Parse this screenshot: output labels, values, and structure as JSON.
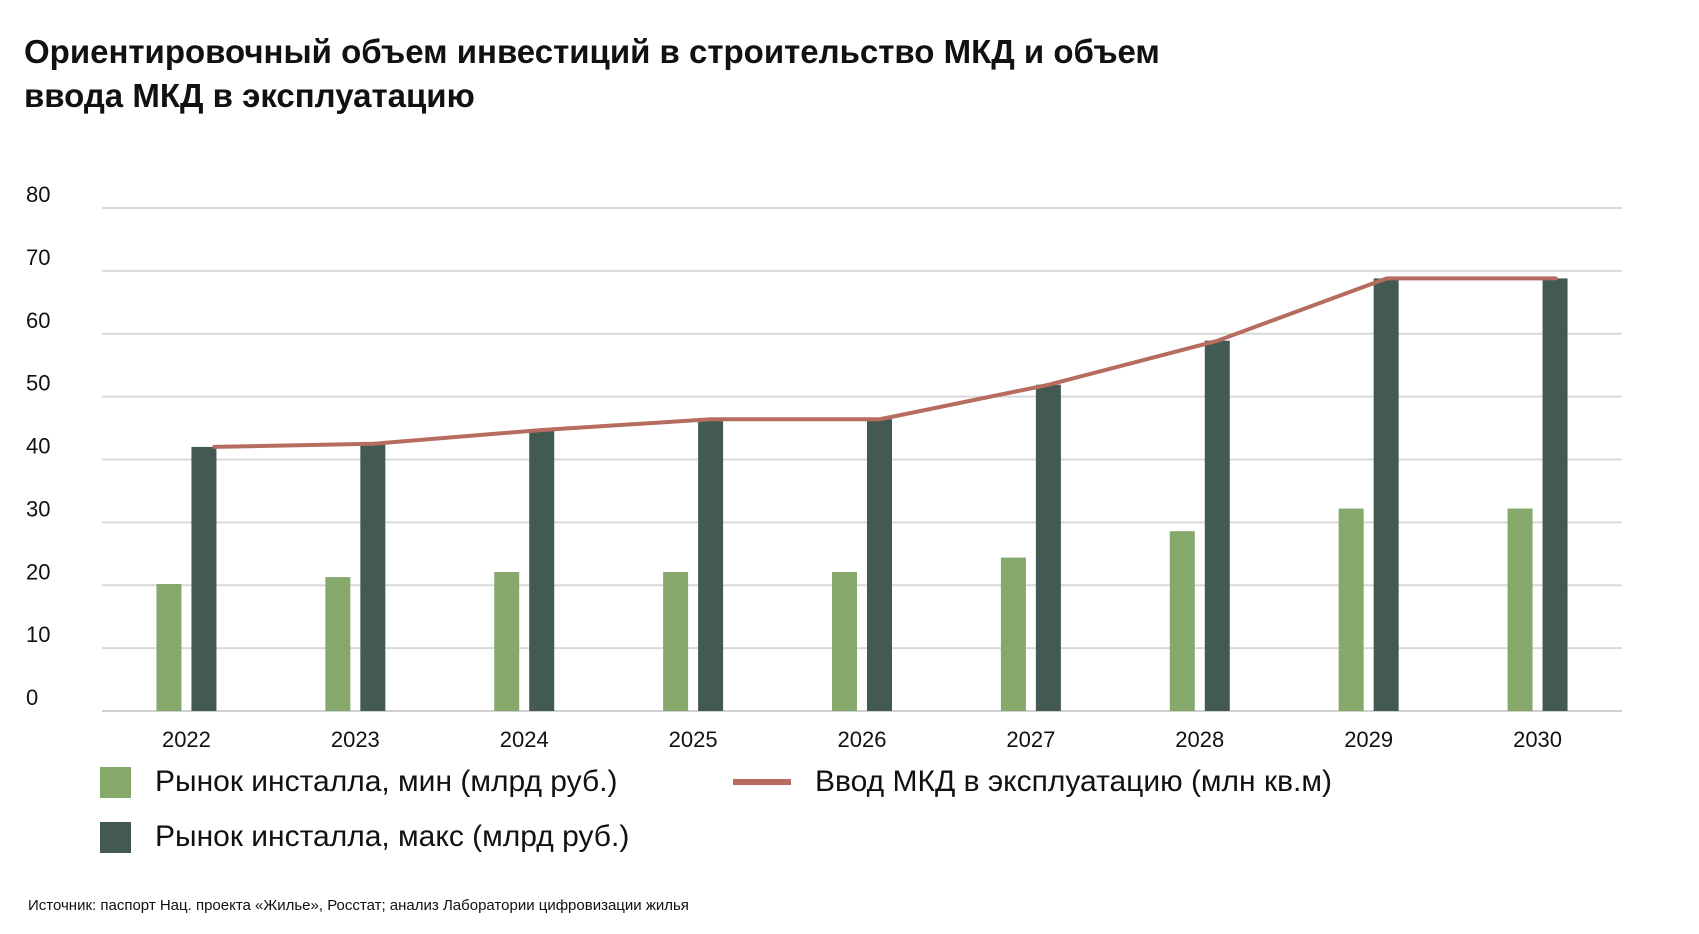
{
  "title_lines": [
    "Ориентировочный объем инвестиций в строительство МКД и объем",
    "ввода МКД в эксплуатацию"
  ],
  "source": "Источник: паспорт Нац. проекта «Жилье», Росстат; анализ Лаборатории цифровизации жилья",
  "colors": {
    "min": "#86a96b",
    "max": "#435a52",
    "line": "#b76c60",
    "grid": "#d9d9d9"
  },
  "legend": {
    "min_label": "Рынок инсталла, мин (млрд руб.)",
    "max_label": "Рынок инсталла, макс (млрд руб.)",
    "line_label": "Ввод МКД в эксплуатацию (млн кв.м)"
  },
  "chart_data": {
    "type": "bar",
    "title": "Ориентировочный объем инвестиций в строительство МКД и объем ввода МКД в эксплуатацию",
    "categories": [
      "2022",
      "2023",
      "2024",
      "2025",
      "2026",
      "2027",
      "2028",
      "2029",
      "2030"
    ],
    "series": [
      {
        "name": "Рынок инсталла, мин (млрд руб.)",
        "type": "bar",
        "values": [
          20.2,
          21.3,
          22.1,
          22.1,
          22.1,
          24.4,
          28.6,
          32.2,
          32.2
        ]
      },
      {
        "name": "Рынок инсталла, макс (млрд руб.)",
        "type": "bar",
        "values": [
          42,
          42.5,
          44.7,
          46.4,
          46.4,
          51.9,
          58.9,
          68.8,
          68.8
        ]
      },
      {
        "name": "Ввод МКД в эксплуатацию (млн кв.м)",
        "type": "line",
        "values": [
          42,
          42.5,
          44.7,
          46.4,
          46.4,
          51.9,
          58.9,
          68.8,
          68.8
        ]
      }
    ],
    "yticks": [
      "0",
      "10",
      "20",
      "30",
      "40",
      "50",
      "60",
      "70",
      "80"
    ],
    "ylim": [
      0,
      80
    ],
    "grid": true,
    "legend_position": "bottom",
    "xlabel": "",
    "ylabel": ""
  }
}
